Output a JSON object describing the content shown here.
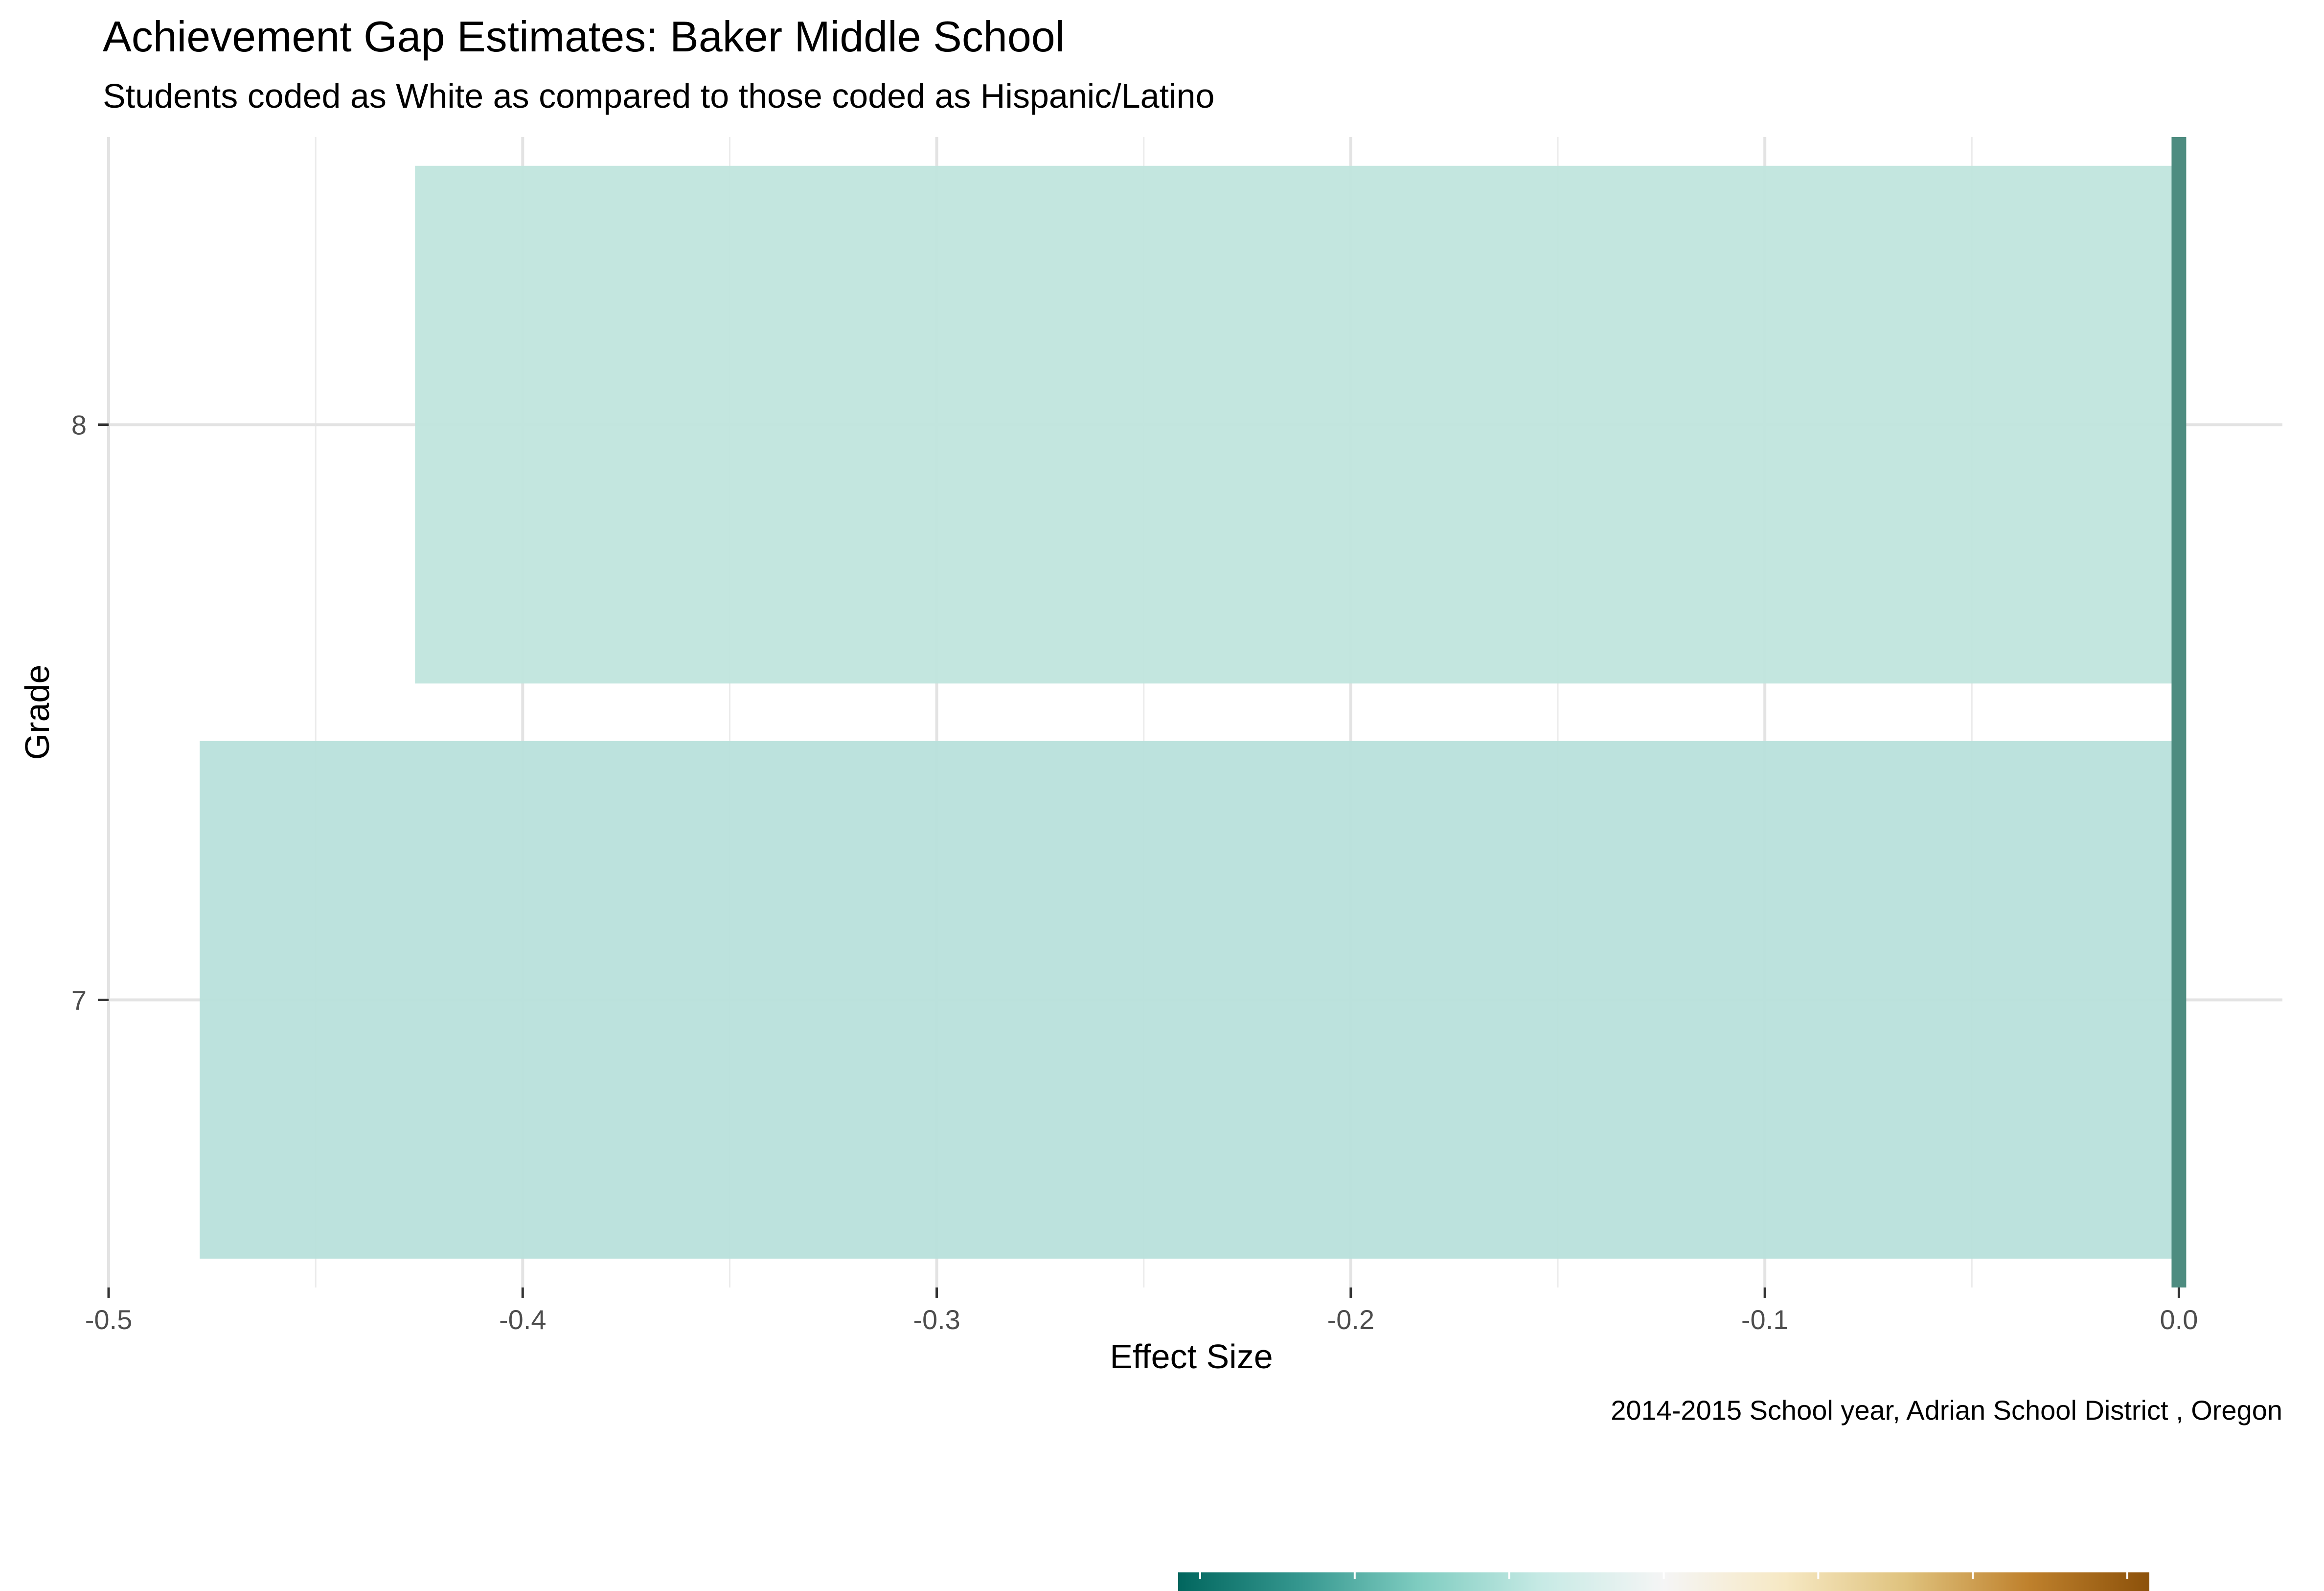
{
  "chart_data": {
    "type": "bar",
    "orientation": "horizontal",
    "title": "Achievement Gap Estimates: Baker Middle School",
    "subtitle": "Students coded as White as compared to those coded as Hispanic/Latino",
    "xlabel": "Effect Size",
    "ylabel": "Grade",
    "caption": "2014-2015 School year,  Adrian School District , Oregon",
    "categories": [
      "7",
      "8"
    ],
    "values": [
      -0.478,
      -0.426
    ],
    "bar_colors": [
      "#b8e0db",
      "#c0e5dd"
    ],
    "reference_line": {
      "value": 0.0,
      "color": "#4e8c80"
    },
    "xlim": [
      -0.5,
      0.025
    ],
    "xticks": [
      -0.5,
      -0.4,
      -0.3,
      -0.2,
      -0.1,
      0.0
    ],
    "xtick_labels": [
      "-0.5",
      "-0.4",
      "-0.3",
      "-0.2",
      "-0.1",
      "0.0"
    ],
    "grid": true,
    "colorbar": {
      "colors": [
        "#01665e",
        "#35978f",
        "#80cdc1",
        "#c7eae5",
        "#f5f5f5",
        "#f6e8c3",
        "#dfc27d",
        "#bf812d",
        "#8c510a"
      ]
    }
  }
}
